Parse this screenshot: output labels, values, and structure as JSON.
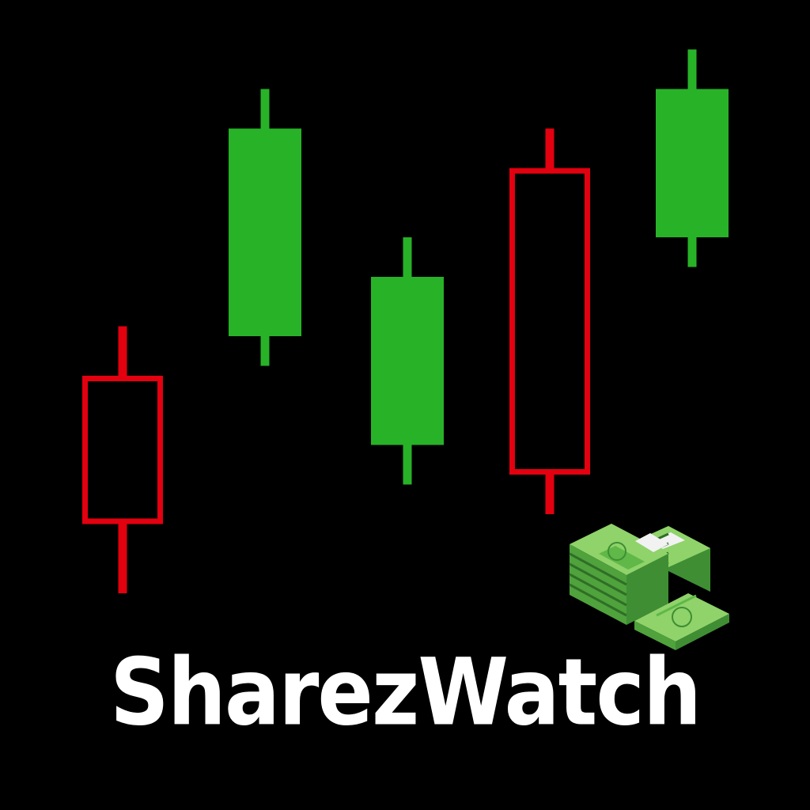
{
  "brand": {
    "name": "SharezWatch"
  },
  "colors": {
    "background": "#000000",
    "bullish": "#28b228",
    "bearish": "#e3000f",
    "text": "#ffffff",
    "money_light": "#8fd36a",
    "money_mid": "#5fb847",
    "money_dark": "#3f8e34",
    "money_band": "#f2f2f2"
  },
  "icons": {
    "cash": "cash-stack-icon"
  },
  "chart_data": {
    "type": "candlestick",
    "candles": [
      {
        "open": 42,
        "close": 27,
        "high": 47,
        "low": 20
      },
      {
        "open": 46,
        "close": 67,
        "high": 71,
        "low": 43
      },
      {
        "open": 35,
        "close": 52,
        "high": 56,
        "low": 31
      },
      {
        "open": 63,
        "close": 32,
        "high": 67,
        "low": 28
      },
      {
        "open": 56,
        "close": 71,
        "high": 75,
        "low": 53
      }
    ],
    "ylim": [
      0,
      80
    ],
    "grid": false,
    "title": "",
    "xlabel": "",
    "ylabel": ""
  }
}
